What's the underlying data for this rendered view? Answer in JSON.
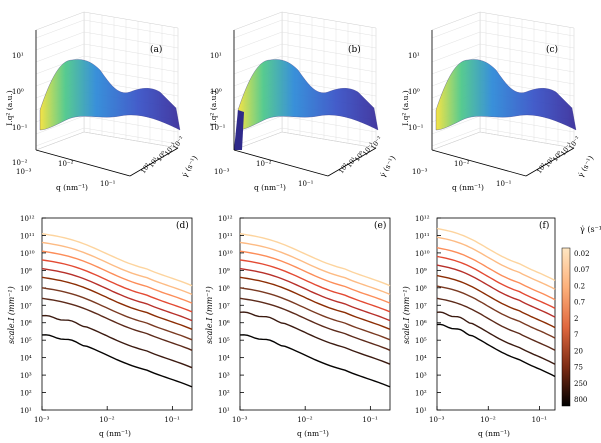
{
  "panels_top": [
    {
      "label": "(a)",
      "zlabel": "I.q² (a.u.)",
      "xlabel": "q (nm⁻¹)",
      "ylabel": "γ̇ (s⁻¹)",
      "z_ticks": [
        "10¹",
        "10⁰",
        "10⁻¹",
        "10⁻²"
      ],
      "x_ticks": [
        "10⁻³",
        "10⁻²",
        "10⁻¹"
      ],
      "y_ticks": [
        "10⁻²",
        "10⁻¹",
        "10⁰",
        "10¹",
        "10²"
      ]
    },
    {
      "label": "(b)",
      "zlabel": "I.q² (a.u.)",
      "xlabel": "q (nm⁻¹)",
      "ylabel": "γ̇ (s⁻¹)",
      "z_ticks": [
        "10¹",
        "10⁰",
        "10⁻¹"
      ],
      "x_ticks": [
        "10⁻³",
        "10⁻²",
        "10⁻¹"
      ],
      "y_ticks": [
        "10⁻²",
        "10⁻¹",
        "10⁰",
        "10¹",
        "10²"
      ]
    },
    {
      "label": "(c)",
      "zlabel": "I.q² (a.u.)",
      "xlabel": "q (nm⁻¹)",
      "ylabel": "γ̇ (s⁻¹)",
      "z_ticks": [
        "10¹",
        "10⁰",
        "10⁻¹"
      ],
      "x_ticks": [
        "10⁻³",
        "10⁻²",
        "10⁻¹"
      ],
      "y_ticks": [
        "10⁻²",
        "10⁻¹",
        "10⁰",
        "10¹",
        "10²"
      ]
    }
  ],
  "colorbar": {
    "title": "γ̇ (s⁻¹)",
    "labels": [
      "0.02",
      "0.07",
      "0.2",
      "0.7",
      "2",
      "7",
      "20",
      "75",
      "250",
      "800"
    ],
    "colors": [
      "#fdd49e",
      "#fdbb84",
      "#fc8d59",
      "#e34a33",
      "#b7302a",
      "#8c2d04",
      "#7a3a22",
      "#5c2a1a",
      "#3b1a10",
      "#050302"
    ]
  },
  "chart_data": [
    {
      "type": "line",
      "panel": "(d)",
      "xlabel": "q (nm⁻¹)",
      "ylabel": "scale.I (mm⁻¹)",
      "xscale": "log",
      "yscale": "log",
      "xlim": [
        0.001,
        0.2
      ],
      "ylim": [
        10,
        1000000000000.0
      ],
      "x_ticks": [
        "10⁻³",
        "10⁻²",
        "10⁻¹"
      ],
      "y_ticks": [
        "10¹",
        "10²",
        "10³",
        "10⁴",
        "10⁵",
        "10⁶",
        "10⁷",
        "10⁸",
        "10⁹",
        "10¹⁰",
        "10¹¹",
        "10¹²"
      ],
      "x": [
        0.001,
        0.002,
        0.005,
        0.01,
        0.02,
        0.05,
        0.1,
        0.2
      ],
      "series_start_log": [
        11.1,
        10.6,
        10.1,
        9.6,
        9.1,
        8.6,
        8.0,
        7.4,
        6.4,
        5.3
      ]
    },
    {
      "type": "line",
      "panel": "(e)",
      "xlabel": "q (nm⁻¹)",
      "ylabel": "scale.I (mm⁻¹)",
      "xscale": "log",
      "yscale": "log",
      "xlim": [
        0.001,
        0.2
      ],
      "ylim": [
        10,
        1000000000000.0
      ],
      "x_ticks": [
        "10⁻³",
        "10⁻²",
        "10⁻¹"
      ],
      "y_ticks": [
        "10¹",
        "10²",
        "10³",
        "10⁴",
        "10⁵",
        "10⁶",
        "10⁷",
        "10⁸",
        "10⁹",
        "10¹⁰",
        "10¹¹",
        "10¹²"
      ],
      "x": [
        0.001,
        0.002,
        0.005,
        0.01,
        0.02,
        0.05,
        0.1,
        0.2
      ],
      "series_start_log": [
        11.1,
        10.6,
        10.1,
        9.6,
        9.1,
        8.6,
        8.0,
        7.4,
        6.6,
        5.3
      ]
    },
    {
      "type": "line",
      "panel": "(f)",
      "xlabel": "q (nm⁻¹)",
      "ylabel": "scale.I (mm⁻¹)",
      "xscale": "log",
      "yscale": "log",
      "xlim": [
        0.001,
        0.2
      ],
      "ylim": [
        10,
        1000000000000.0
      ],
      "x_ticks": [
        "10⁻³",
        "10⁻²",
        "10⁻¹"
      ],
      "y_ticks": [
        "10¹",
        "10²",
        "10³",
        "10⁴",
        "10⁵",
        "10⁶",
        "10⁷",
        "10⁸",
        "10⁹",
        "10¹⁰",
        "10¹¹",
        "10¹²"
      ],
      "x": [
        0.001,
        0.002,
        0.005,
        0.01,
        0.02,
        0.05,
        0.1,
        0.2
      ],
      "series_start_log": [
        11.4,
        10.9,
        10.3,
        9.8,
        9.3,
        8.7,
        8.1,
        7.4,
        6.6,
        5.9
      ]
    }
  ]
}
